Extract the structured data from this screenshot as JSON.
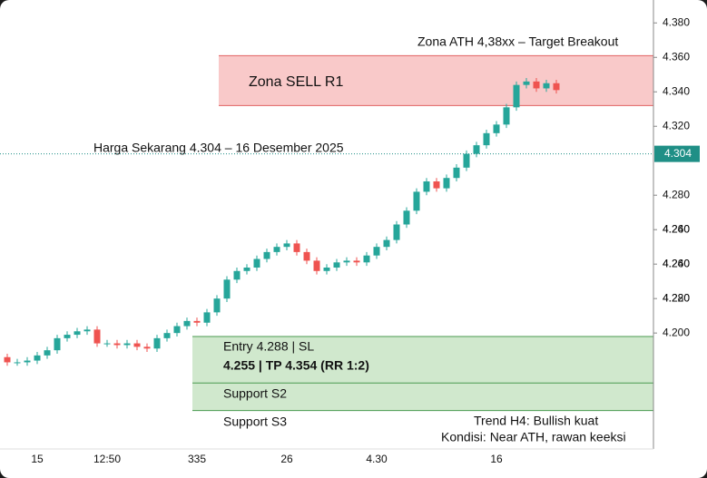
{
  "chart_data": {
    "type": "candlestick",
    "ylim": [
      4.1327,
      4.3933
    ],
    "yticks": [
      {
        "value": 4.38,
        "label": "4.380"
      },
      {
        "value": 4.36,
        "label": "4.360"
      },
      {
        "value": 4.34,
        "label": "4.340"
      },
      {
        "value": 4.32,
        "label": "4.320"
      },
      {
        "value": 4.28,
        "label": "4.280"
      },
      {
        "value": 4.26,
        "label": "4.260"
      },
      {
        "value": 4.24,
        "label": "4.240"
      },
      {
        "value": 4.22,
        "label": "4.220"
      },
      {
        "value": 4.2,
        "label": "4.200"
      }
    ],
    "axis_extra_labels": [
      "4.280",
      "4.260",
      "4.240"
    ],
    "up_color": "#26a69a",
    "down_color": "#ef5350",
    "categories": [
      null,
      null,
      null,
      "15",
      null,
      null,
      null,
      null,
      null,
      null,
      "12:50",
      null,
      null,
      null,
      null,
      null,
      null,
      null,
      null,
      "335",
      null,
      null,
      null,
      null,
      null,
      null,
      null,
      null,
      "26",
      null,
      null,
      null,
      null,
      null,
      null,
      null,
      null,
      "4.30",
      null,
      null,
      null,
      null,
      null,
      null,
      null,
      null,
      null,
      null,
      null,
      "16",
      null,
      null,
      null,
      null,
      null,
      null
    ],
    "open": [
      4.186,
      4.183,
      4.183,
      4.184,
      4.187,
      4.19,
      4.197,
      4.199,
      4.201,
      4.202,
      4.194,
      4.194,
      4.193,
      4.194,
      4.192,
      4.191,
      4.197,
      4.2,
      4.204,
      4.207,
      4.206,
      4.212,
      4.22,
      4.231,
      4.236,
      4.238,
      4.243,
      4.247,
      4.25,
      4.252,
      4.247,
      4.242,
      4.236,
      4.238,
      4.241,
      4.242,
      4.241,
      4.245,
      4.25,
      4.254,
      4.263,
      4.271,
      4.282,
      4.288,
      4.284,
      4.29,
      4.296,
      4.304,
      4.309,
      4.316,
      4.321,
      4.331,
      4.344,
      4.346,
      4.342,
      4.345
    ],
    "high": [
      4.188,
      4.185,
      4.186,
      4.189,
      4.192,
      4.199,
      4.201,
      4.203,
      4.204,
      4.204,
      4.196,
      4.196,
      4.196,
      4.196,
      4.194,
      4.199,
      4.202,
      4.206,
      4.209,
      4.209,
      4.214,
      4.222,
      4.233,
      4.238,
      4.24,
      4.245,
      4.249,
      4.252,
      4.254,
      4.254,
      4.249,
      4.244,
      4.24,
      4.243,
      4.244,
      4.244,
      4.247,
      4.252,
      4.256,
      4.265,
      4.273,
      4.284,
      4.29,
      4.29,
      4.292,
      4.298,
      4.306,
      4.311,
      4.318,
      4.323,
      4.333,
      4.346,
      4.348,
      4.348,
      4.347,
      4.347
    ],
    "low": [
      4.181,
      4.181,
      4.181,
      4.182,
      4.185,
      4.188,
      4.195,
      4.197,
      4.199,
      4.192,
      4.192,
      4.191,
      4.191,
      4.19,
      4.189,
      4.189,
      4.195,
      4.198,
      4.202,
      4.204,
      4.204,
      4.21,
      4.218,
      4.229,
      4.234,
      4.236,
      4.241,
      4.245,
      4.248,
      4.245,
      4.24,
      4.234,
      4.234,
      4.236,
      4.239,
      4.239,
      4.239,
      4.243,
      4.248,
      4.252,
      4.261,
      4.269,
      4.28,
      4.282,
      4.282,
      4.288,
      4.294,
      4.302,
      4.307,
      4.314,
      4.319,
      4.329,
      4.342,
      4.34,
      4.34,
      4.339
    ],
    "close": [
      4.183,
      4.183,
      4.184,
      4.187,
      4.19,
      4.197,
      4.199,
      4.201,
      4.202,
      4.194,
      4.194,
      4.193,
      4.194,
      4.192,
      4.191,
      4.197,
      4.2,
      4.204,
      4.207,
      4.206,
      4.212,
      4.22,
      4.231,
      4.236,
      4.238,
      4.243,
      4.247,
      4.25,
      4.252,
      4.247,
      4.242,
      4.236,
      4.238,
      4.241,
      4.242,
      4.241,
      4.245,
      4.25,
      4.254,
      4.263,
      4.271,
      4.282,
      4.288,
      4.284,
      4.29,
      4.296,
      4.304,
      4.309,
      4.316,
      4.321,
      4.331,
      4.344,
      4.346,
      4.342,
      4.345,
      4.341
    ],
    "current_price": 4.304,
    "current_price_color": "#1f8f86",
    "sell_zone": {
      "label": "Zona SELL R1",
      "top": 4.361,
      "bottom": 4.332,
      "color": "#f9c9c9",
      "edge": "#e06060"
    },
    "buy_zone": {
      "top": 4.198,
      "bottom": 4.155,
      "divider": 4.171,
      "color": "#d0e8cd",
      "edge": "#4a9a50"
    },
    "annotations": {
      "ath": "Zona ATH 4,38xx – Target Breakout",
      "price": "Harga Sekarang  4.304 – 16 Desember 2025",
      "entry1": "Entry 4.288 | SL",
      "entry2": "4.255 | TP 4.354   (RR 1:2)",
      "s2": "Support S2",
      "s3": "Support S3",
      "trend": "Trend H4: Bullish kuat",
      "cond": "Kondisi: Near ATH, rawan keeksi"
    }
  }
}
